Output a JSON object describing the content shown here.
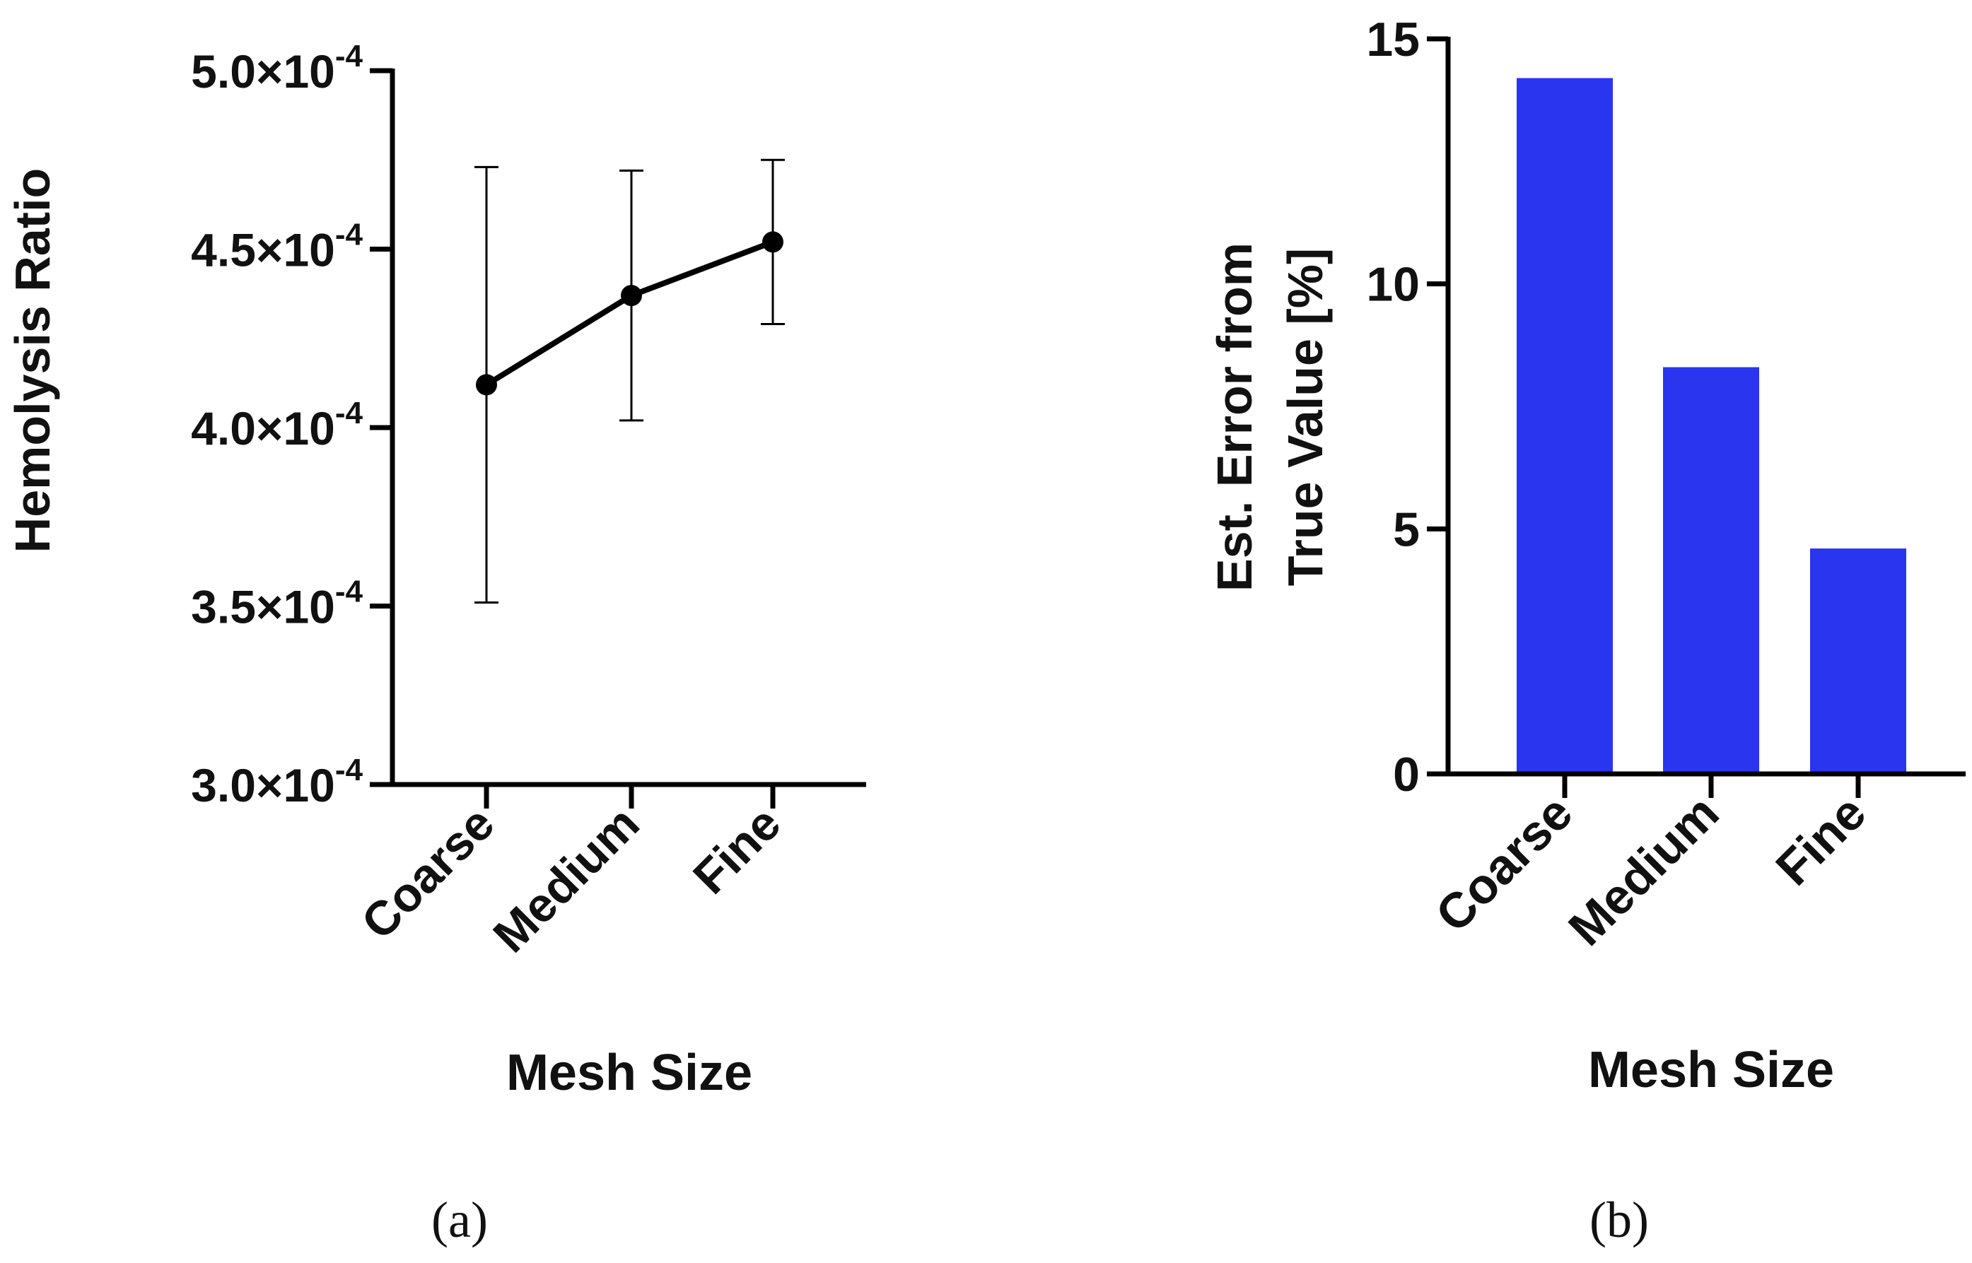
{
  "chart_data": [
    {
      "type": "line",
      "panel_label": "(a)",
      "title": "",
      "xlabel": "Mesh Size",
      "ylabel": "Hemolysis Ratio",
      "categories": [
        "Coarse",
        "Medium",
        "Fine"
      ],
      "series": [
        {
          "name": "Hemolysis Ratio",
          "values": [
            0.000412,
            0.000437,
            0.000452
          ],
          "error_low": [
            0.000351,
            0.000402,
            0.000429
          ],
          "error_high": [
            0.000473,
            0.000472,
            0.000475
          ]
        }
      ],
      "ylim": [
        0.0003,
        0.0005
      ],
      "yticks": [
        0.0003,
        0.00035,
        0.0004,
        0.00045,
        0.0005
      ],
      "ytick_labels": [
        {
          "mantissa": "3.0×10",
          "exponent": "-4"
        },
        {
          "mantissa": "3.5×10",
          "exponent": "-4"
        },
        {
          "mantissa": "4.0×10",
          "exponent": "-4"
        },
        {
          "mantissa": "4.5×10",
          "exponent": "-4"
        },
        {
          "mantissa": "5.0×10",
          "exponent": "-4"
        }
      ],
      "color": "#000000",
      "grid": false,
      "legend": "none"
    },
    {
      "type": "bar",
      "panel_label": "(b)",
      "title": "",
      "xlabel": "Mesh Size",
      "ylabel_lines": [
        "Est. Error from",
        "True Value [%]"
      ],
      "categories": [
        "Coarse",
        "Medium",
        "Fine"
      ],
      "values": [
        14.2,
        8.3,
        4.6
      ],
      "ylim": [
        0,
        15
      ],
      "yticks": [
        0,
        5,
        10,
        15
      ],
      "ytick_labels": [
        "0",
        "5",
        "10",
        "15"
      ],
      "color": "#2a35f0",
      "grid": false,
      "legend": "none"
    }
  ]
}
